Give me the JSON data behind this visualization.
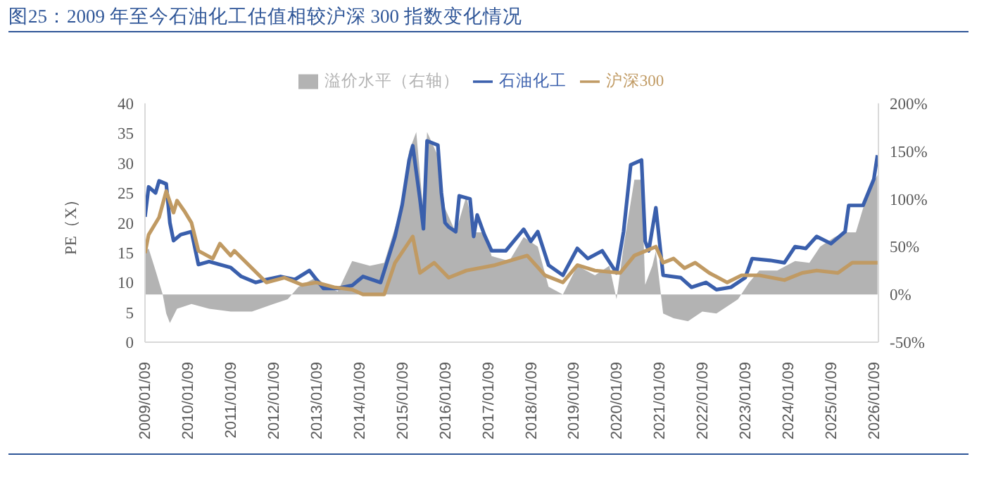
{
  "chart_data": {
    "type": "line",
    "title": "图25：2009 年至今石油化工估值相较沪深 300 指数变化情况",
    "ylabel": "PE（X）",
    "legend": "top",
    "grid": false,
    "marker": "none",
    "line_style": "solid",
    "xlim": [
      "2009-01-01",
      "2026-02-09"
    ],
    "xticks": [
      {
        "value": "2009-01-09",
        "label": "2009/01/09"
      },
      {
        "value": "2010-01-09",
        "label": "2010/01/09"
      },
      {
        "value": "2011-01-09",
        "label": "2011/01/09"
      },
      {
        "value": "2012-01-09",
        "label": "2012/01/09"
      },
      {
        "value": "2013-01-09",
        "label": "2013/01/09"
      },
      {
        "value": "2014-01-09",
        "label": "2014/01/09"
      },
      {
        "value": "2015-01-09",
        "label": "2015/01/09"
      },
      {
        "value": "2016-01-09",
        "label": "2016/01/09"
      },
      {
        "value": "2017-01-09",
        "label": "2017/01/09"
      },
      {
        "value": "2018-01-09",
        "label": "2018/01/09"
      },
      {
        "value": "2019-01-09",
        "label": "2019/01/09"
      },
      {
        "value": "2020-01-09",
        "label": "2020/01/09"
      },
      {
        "value": "2021-01-09",
        "label": "2021/01/09"
      },
      {
        "value": "2022-01-09",
        "label": "2022/01/09"
      },
      {
        "value": "2023-01-09",
        "label": "2023/01/09"
      },
      {
        "value": "2024-01-09",
        "label": "2024/01/09"
      },
      {
        "value": "2025-01-09",
        "label": "2025/01/09"
      },
      {
        "value": "2026-01-09",
        "label": "2026/01/09"
      }
    ],
    "ylim": [
      0,
      40
    ],
    "yticks": [
      0,
      5,
      10,
      15,
      20,
      25,
      30,
      35,
      40
    ],
    "y2lim": [
      -50,
      200
    ],
    "y2ticks": [
      {
        "value": -50,
        "label": "-50%"
      },
      {
        "value": 0,
        "label": "0%"
      },
      {
        "value": 50,
        "label": "50%"
      },
      {
        "value": 100,
        "label": "100%"
      },
      {
        "value": 150,
        "label": "150%"
      },
      {
        "value": 200,
        "label": "200%"
      }
    ],
    "series": [
      {
        "name": "溢价水平（右轴）",
        "type": "area",
        "axis": "y2",
        "color": "#b3b3b3",
        "x": [
          "2009-01",
          "2009-02",
          "2009-04",
          "2009-06",
          "2009-07",
          "2009-08",
          "2009-10",
          "2010-02",
          "2010-07",
          "2011-01",
          "2011-07",
          "2012-01",
          "2012-05",
          "2012-08",
          "2013-01",
          "2013-04",
          "2013-07",
          "2013-11",
          "2014-04",
          "2014-08",
          "2014-11",
          "2015-01",
          "2015-03",
          "2015-05",
          "2015-07",
          "2015-08",
          "2015-11",
          "2016-01",
          "2016-04",
          "2016-07",
          "2016-09",
          "2016-12",
          "2017-02",
          "2017-07",
          "2017-11",
          "2018-03",
          "2018-06",
          "2018-10",
          "2019-02",
          "2019-07",
          "2019-11",
          "2020-01",
          "2020-03",
          "2020-06",
          "2020-08",
          "2020-09",
          "2020-11",
          "2020-12",
          "2021-02",
          "2021-05",
          "2021-09",
          "2022-01",
          "2022-05",
          "2022-09",
          "2022-11",
          "2023-02",
          "2023-05",
          "2023-10",
          "2024-03",
          "2024-07",
          "2024-10",
          "2025-02",
          "2025-05",
          "2025-08",
          "2025-10",
          "2025-12",
          "2026-02"
        ],
        "values": [
          45,
          48,
          25,
          0,
          -20,
          -30,
          -15,
          -10,
          -15,
          -18,
          -18,
          -10,
          -5,
          8,
          18,
          8,
          3,
          35,
          30,
          33,
          70,
          95,
          150,
          170,
          85,
          170,
          145,
          90,
          65,
          103,
          65,
          65,
          40,
          35,
          60,
          50,
          8,
          0,
          30,
          20,
          30,
          -5,
          50,
          120,
          120,
          10,
          30,
          45,
          -20,
          -25,
          -28,
          -18,
          -20,
          -10,
          -5,
          12,
          25,
          25,
          35,
          33,
          50,
          60,
          65,
          65,
          90,
          110,
          125
        ]
      },
      {
        "name": "石油化工",
        "color": "#3a5fac",
        "x": [
          "2009-01",
          "2009-02",
          "2009-04",
          "2009-05",
          "2009-07",
          "2009-08",
          "2009-09",
          "2009-11",
          "2010-02",
          "2010-04",
          "2010-07",
          "2010-10",
          "2011-01",
          "2011-04",
          "2011-08",
          "2011-11",
          "2012-03",
          "2012-07",
          "2012-11",
          "2013-03",
          "2013-07",
          "2013-11",
          "2014-02",
          "2014-07",
          "2014-11",
          "2015-01",
          "2015-03",
          "2015-04",
          "2015-06",
          "2015-07",
          "2015-08",
          "2015-11",
          "2015-12",
          "2016-01",
          "2016-02",
          "2016-04",
          "2016-05",
          "2016-08",
          "2016-09",
          "2016-10",
          "2016-12",
          "2017-02",
          "2017-06",
          "2017-11",
          "2018-01",
          "2018-03",
          "2018-06",
          "2018-10",
          "2019-02",
          "2019-05",
          "2019-09",
          "2020-01",
          "2020-03",
          "2020-05",
          "2020-08",
          "2020-09",
          "2020-10",
          "2020-12",
          "2021-02",
          "2021-07",
          "2021-10",
          "2022-02",
          "2022-05",
          "2022-09",
          "2023-01",
          "2023-03",
          "2023-08",
          "2023-12",
          "2024-03",
          "2024-06",
          "2024-09",
          "2025-01",
          "2025-05",
          "2025-06",
          "2025-10",
          "2026-01",
          "2026-02"
        ],
        "values": [
          21,
          26,
          25,
          27,
          26.5,
          20,
          17,
          18,
          18.5,
          13,
          13.5,
          13,
          12.5,
          11,
          10,
          10.5,
          11,
          10.5,
          12,
          9,
          9,
          9.5,
          11,
          10,
          17.7,
          23,
          30.5,
          32.9,
          24,
          19,
          33.7,
          33,
          25,
          20,
          19.3,
          18.5,
          24.5,
          24,
          17.7,
          21.3,
          18,
          15.3,
          15.3,
          18.9,
          16.9,
          18.5,
          12.9,
          11.2,
          15.7,
          14,
          15.3,
          11.6,
          18.5,
          29.7,
          30.5,
          16.9,
          15.3,
          22.5,
          11.2,
          10.8,
          9.2,
          10,
          8.8,
          9.2,
          10.8,
          14,
          13.7,
          13.3,
          16,
          15.7,
          17.7,
          16.5,
          18.5,
          22.9,
          22.9,
          27.3,
          31.3
        ]
      },
      {
        "name": "沪深300",
        "color": "#c09a63",
        "x": [
          "2009-01",
          "2009-02",
          "2009-05",
          "2009-07",
          "2009-09",
          "2009-10",
          "2009-12",
          "2010-02",
          "2010-04",
          "2010-08",
          "2010-10",
          "2011-01",
          "2011-02",
          "2011-07",
          "2011-11",
          "2012-04",
          "2012-09",
          "2013-01",
          "2013-06",
          "2013-11",
          "2014-02",
          "2014-08",
          "2014-11",
          "2015-04",
          "2015-06",
          "2015-10",
          "2016-02",
          "2016-07",
          "2017-03",
          "2017-12",
          "2018-05",
          "2018-10",
          "2019-02",
          "2019-07",
          "2020-02",
          "2020-06",
          "2020-12",
          "2021-02",
          "2021-05",
          "2021-08",
          "2021-11",
          "2022-03",
          "2022-08",
          "2022-12",
          "2023-05",
          "2023-12",
          "2024-05",
          "2024-09",
          "2025-03",
          "2025-07",
          "2026-02"
        ],
        "values": [
          14.9,
          18,
          20.9,
          25.3,
          21.7,
          23.7,
          22,
          20,
          15.3,
          14,
          16.5,
          14.5,
          15.3,
          12.4,
          10,
          10.8,
          9.6,
          10,
          9.2,
          8.8,
          8,
          8,
          13.3,
          17.7,
          11.6,
          13.3,
          10.8,
          12,
          12.9,
          14.5,
          11.2,
          10,
          12.9,
          12,
          11.6,
          14.5,
          16,
          13.3,
          14,
          12.4,
          13.3,
          11.6,
          10,
          11.2,
          11.2,
          10.4,
          11.6,
          12,
          11.6,
          13.3,
          13.3
        ]
      }
    ]
  }
}
